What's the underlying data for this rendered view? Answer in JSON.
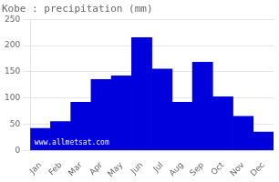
{
  "chart_data": {
    "type": "bar",
    "title": "Kobe : precipitation (mm)",
    "categories": [
      "Jan",
      "Feb",
      "Mar",
      "Apr",
      "May",
      "Jun",
      "Jul",
      "Aug",
      "Sep",
      "Oct",
      "Nov",
      "Dec"
    ],
    "values": [
      42,
      55,
      92,
      135,
      142,
      215,
      155,
      92,
      168,
      102,
      65,
      35
    ],
    "color": "#0000dd",
    "ylim": [
      0,
      250
    ],
    "yticks": [
      0,
      50,
      100,
      150,
      200,
      250
    ],
    "grid": true,
    "annotations": [
      "www.allmetsat.com"
    ]
  }
}
